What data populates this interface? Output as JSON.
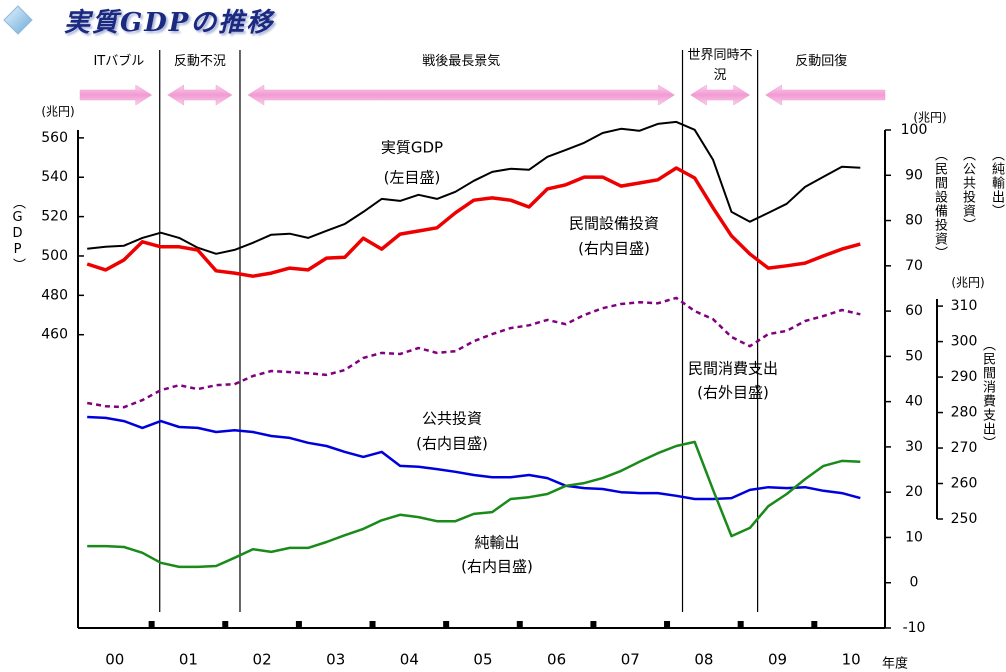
{
  "chart_data": {
    "type": "line",
    "title": "実質GDPの推移",
    "xlabel": "年度",
    "x": [
      0.125,
      0.375,
      0.625,
      0.875,
      1.125,
      1.375,
      1.625,
      1.875,
      2.125,
      2.375,
      2.625,
      2.875,
      3.125,
      3.375,
      3.625,
      3.875,
      4.125,
      4.375,
      4.625,
      4.875,
      5.125,
      5.375,
      5.625,
      5.875,
      6.125,
      6.375,
      6.625,
      6.875,
      7.125,
      7.375,
      7.625,
      7.875,
      8.125,
      8.375,
      8.625,
      8.875,
      9.125,
      9.375,
      9.625,
      9.875,
      10.125,
      10.375,
      10.625
    ],
    "xlim": [
      0,
      10.96
    ],
    "xticks": [
      {
        "value": 0.5,
        "label": "00"
      },
      {
        "value": 1.5,
        "label": "01"
      },
      {
        "value": 2.5,
        "label": "02"
      },
      {
        "value": 3.5,
        "label": "03"
      },
      {
        "value": 4.5,
        "label": "04"
      },
      {
        "value": 5.5,
        "label": "05"
      },
      {
        "value": 6.5,
        "label": "06"
      },
      {
        "value": 7.5,
        "label": "07"
      },
      {
        "value": 8.5,
        "label": "08"
      },
      {
        "value": 9.5,
        "label": "09"
      },
      {
        "value": 10.5,
        "label": "10"
      }
    ],
    "ylim": [
      311,
      564
    ],
    "yticks": [
      460,
      480,
      500,
      520,
      540,
      560
    ],
    "y_unit": "(兆円)",
    "ylabel": "（GDP）",
    "y2lim": [
      -10,
      100
    ],
    "y2ticks": [
      -10,
      0,
      10,
      20,
      30,
      40,
      50,
      60,
      70,
      80,
      90,
      100
    ],
    "y2_unit": "(兆円)",
    "y2labels": [
      "（民間設備投資）",
      "（公共投資）",
      "（純輸出）"
    ],
    "y3lim": [
      250,
      312
    ],
    "y3ticks": [
      250,
      260,
      270,
      280,
      290,
      300,
      310
    ],
    "y3_unit": "(兆円)",
    "y3label": "（民間消費支出）",
    "periods": [
      "ITバブル",
      "反動不況",
      "戦後最長景気",
      "世界同時不況",
      "反動回復"
    ],
    "period_boundaries": [
      1.11,
      2.2,
      8.21,
      9.23
    ],
    "series": [
      {
        "name": "実質GDP",
        "scale_label": "(左目盛)",
        "axis": "y",
        "color": "#000000",
        "dashed": false,
        "values": [
          503.7,
          504.7,
          505.2,
          509.2,
          511.8,
          509.2,
          504.2,
          501.1,
          503.1,
          506.7,
          510.8,
          511.3,
          509.2,
          512.8,
          516.3,
          522.4,
          529.0,
          528.0,
          531.1,
          529.0,
          532.6,
          538.2,
          542.7,
          544.3,
          543.8,
          550.4,
          553.9,
          557.5,
          562.5,
          564.6,
          563.6,
          567.1,
          568.1,
          564.1,
          548.8,
          522.4,
          517.4,
          521.9,
          526.5,
          535.1,
          540.2,
          545.3,
          544.8
        ]
      },
      {
        "name": "民間設備投資",
        "scale_label": "(右内目盛)",
        "axis": "y2",
        "color": "#ee0000",
        "dashed": false,
        "values": [
          70.4,
          69.1,
          71.3,
          75.3,
          74.2,
          74.2,
          73.5,
          68.9,
          68.4,
          67.7,
          68.4,
          69.5,
          69.1,
          71.7,
          71.9,
          76.1,
          73.7,
          77.0,
          77.7,
          78.4,
          81.7,
          84.5,
          85.0,
          84.5,
          83.0,
          87.0,
          87.9,
          89.6,
          89.6,
          87.6,
          88.3,
          89.0,
          91.6,
          89.4,
          82.8,
          76.6,
          72.6,
          69.5,
          70.0,
          70.6,
          72.2,
          73.7,
          74.8
        ]
      },
      {
        "name": "民間消費支出",
        "scale_label": "(右外目盛)",
        "axis": "y3",
        "color": "#800080",
        "dashed": true,
        "values": [
          282.7,
          281.8,
          281.5,
          283.5,
          286.3,
          287.7,
          286.6,
          287.7,
          288.0,
          290.3,
          291.7,
          291.4,
          291.1,
          290.6,
          292.0,
          295.4,
          296.8,
          296.5,
          298.2,
          296.8,
          297.3,
          300.1,
          302.1,
          303.8,
          304.6,
          306.1,
          304.9,
          307.5,
          309.4,
          310.6,
          311.1,
          310.8,
          312.3,
          308.6,
          306.3,
          301.3,
          298.7,
          302.1,
          303.0,
          305.8,
          307.2,
          308.9,
          307.7
        ]
      },
      {
        "name": "公共投資",
        "scale_label": "(右内目盛)",
        "axis": "y2",
        "color": "#0000dd",
        "dashed": false,
        "values": [
          36.6,
          36.4,
          35.7,
          34.2,
          35.7,
          34.4,
          34.2,
          33.3,
          33.7,
          33.3,
          32.4,
          32.0,
          30.9,
          30.2,
          28.9,
          27.8,
          28.9,
          25.8,
          25.6,
          25.1,
          24.5,
          23.8,
          23.3,
          23.3,
          23.8,
          23.1,
          21.4,
          20.9,
          20.7,
          20.0,
          19.8,
          19.8,
          19.2,
          18.5,
          18.5,
          18.7,
          20.5,
          21.1,
          20.9,
          21.1,
          20.3,
          19.8,
          18.7
        ]
      },
      {
        "name": "純輸出",
        "scale_label": "(右内目盛)",
        "axis": "y2",
        "color": "#1a8a1a",
        "dashed": false,
        "values": [
          8.1,
          8.1,
          7.9,
          6.6,
          4.4,
          3.5,
          3.5,
          3.7,
          5.5,
          7.4,
          6.8,
          7.7,
          7.7,
          9.0,
          10.5,
          11.9,
          13.8,
          15.0,
          14.5,
          13.6,
          13.6,
          15.2,
          15.6,
          18.5,
          18.9,
          19.6,
          21.4,
          22.0,
          23.1,
          24.7,
          26.7,
          28.6,
          30.2,
          31.1,
          20.5,
          10.3,
          12.1,
          16.9,
          19.6,
          22.9,
          25.8,
          26.9,
          26.7
        ]
      }
    ]
  }
}
